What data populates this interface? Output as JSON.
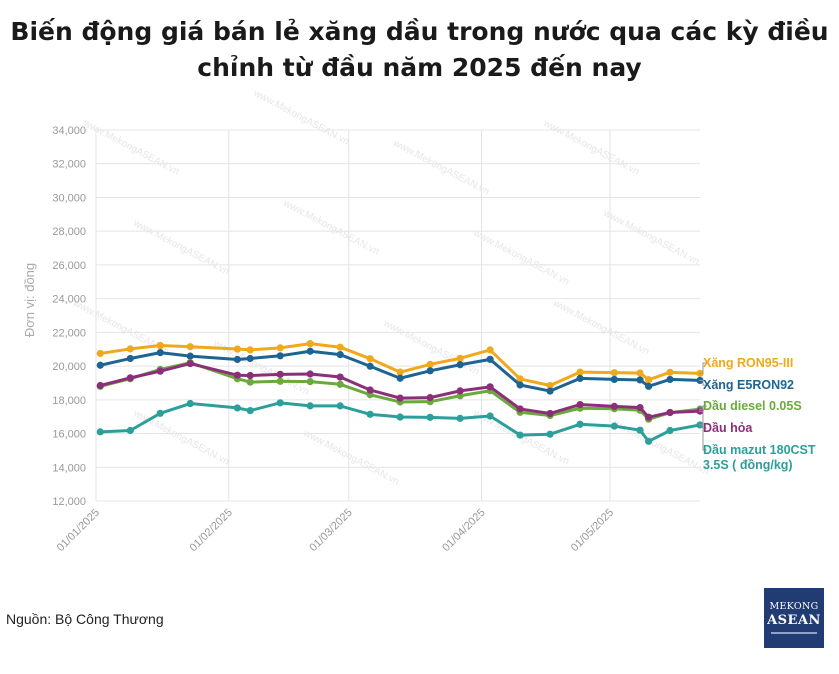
{
  "title": "Biến động giá bán lẻ xăng dầu trong nước qua các kỳ điều chỉnh từ đầu năm 2025 đến nay",
  "source": "Nguồn: Bộ Công Thương",
  "watermark": "www.MekongASEAN.vn",
  "logo": {
    "line1": "MEKONG",
    "line2": "ASEAN"
  },
  "chart_data": {
    "type": "line",
    "ylabel": "Đơn vị: đồng",
    "ylim": [
      12000,
      34000
    ],
    "yticks": [
      12000,
      14000,
      16000,
      18000,
      20000,
      22000,
      24000,
      26000,
      28000,
      30000,
      32000,
      34000
    ],
    "ytick_labels": [
      "12,000",
      "14,000",
      "16,000",
      "18,000",
      "20,000",
      "22,000",
      "24,000",
      "26,000",
      "28,000",
      "30,000",
      "32,000",
      "34,000"
    ],
    "xlim": [
      "2025-01-01",
      "2025-05-22"
    ],
    "xticks": [
      "2025-01-01",
      "2025-02-01",
      "2025-03-01",
      "2025-04-01",
      "2025-05-01"
    ],
    "xtick_labels": [
      "01/01/2025",
      "01/02/2025",
      "01/03/2025",
      "01/04/2025",
      "01/05/2025"
    ],
    "grid": true,
    "legend": "right, labels at line ends",
    "x": [
      "2025-01-02",
      "2025-01-09",
      "2025-01-16",
      "2025-01-23",
      "2025-02-03",
      "2025-02-06",
      "2025-02-13",
      "2025-02-20",
      "2025-02-27",
      "2025-03-06",
      "2025-03-13",
      "2025-03-20",
      "2025-03-27",
      "2025-04-03",
      "2025-04-10",
      "2025-04-17",
      "2025-04-24",
      "2025-05-02",
      "2025-05-08",
      "2025-05-10",
      "2025-05-15",
      "2025-05-22"
    ],
    "series": [
      {
        "name": "Xăng RON95-III",
        "color": "#f0a81c",
        "values": [
          20750,
          21020,
          21220,
          21150,
          21010,
          20960,
          21080,
          21330,
          21120,
          20440,
          19640,
          20100,
          20460,
          20960,
          19240,
          18850,
          19640,
          19610,
          19590,
          19190,
          19630,
          19570
        ]
      },
      {
        "name": "Xăng E5RON92",
        "color": "#1e6493",
        "values": [
          20050,
          20450,
          20800,
          20590,
          20390,
          20450,
          20610,
          20880,
          20680,
          19990,
          19280,
          19720,
          20080,
          20400,
          18880,
          18520,
          19270,
          19210,
          19180,
          18800,
          19210,
          19150
        ]
      },
      {
        "name": "Dầu diesel 0.05S",
        "color": "#6aaa3c",
        "values": [
          18800,
          19250,
          19800,
          20200,
          19250,
          19050,
          19100,
          19080,
          18920,
          18300,
          17870,
          17890,
          18240,
          18540,
          17260,
          17070,
          17500,
          17470,
          17380,
          16850,
          17240,
          17450
        ]
      },
      {
        "name": "Dầu hỏa",
        "color": "#8c2f7a",
        "values": [
          18850,
          19300,
          19700,
          20150,
          19460,
          19440,
          19510,
          19530,
          19350,
          18580,
          18100,
          18130,
          18530,
          18770,
          17460,
          17190,
          17720,
          17610,
          17540,
          16970,
          17250,
          17330
        ]
      },
      {
        "name": "Dầu mazut 180CST 3.5S ( đồng/kg)",
        "color": "#2c9f9a",
        "values": [
          16100,
          16180,
          17200,
          17780,
          17520,
          17360,
          17820,
          17640,
          17640,
          17140,
          16980,
          16960,
          16900,
          17040,
          15910,
          15960,
          16550,
          16440,
          16200,
          15540,
          16180,
          16510
        ]
      }
    ]
  }
}
